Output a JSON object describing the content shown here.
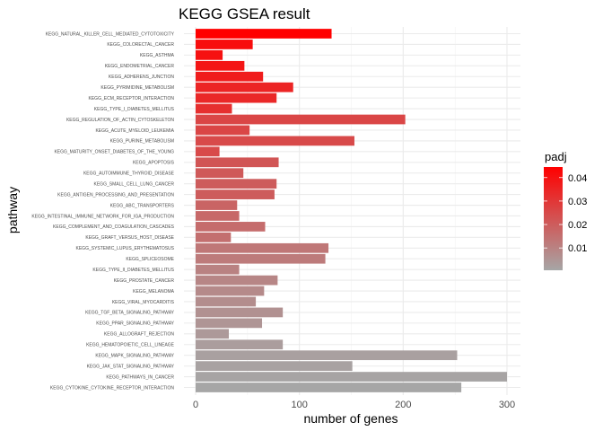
{
  "chart_data": {
    "type": "bar",
    "orientation": "horizontal",
    "title": "KEGG GSEA result",
    "xlabel": "number of genes",
    "ylabel": "pathway",
    "xlim": [
      0,
      315
    ],
    "xticks": [
      0,
      100,
      200,
      300
    ],
    "grid": true,
    "legend": {
      "title": "padj",
      "placement": "right",
      "colors": {
        "low": "#a6a6a6",
        "high": "#ff0000"
      },
      "range": [
        0.0005,
        0.0445
      ],
      "ticks": [
        0.01,
        0.02,
        0.03,
        0.04
      ],
      "tick_labels": [
        "0.01",
        "0.02",
        "0.03",
        "0.04"
      ]
    },
    "categories": [
      "KEGG_NATURAL_KILLER_CELL_MEDIATED_CYTOTOXICITY",
      "KEGG_COLORECTAL_CANCER",
      "KEGG_ASTHMA",
      "KEGG_ENDOMETRIAL_CANCER",
      "KEGG_ADHERENS_JUNCTION",
      "KEGG_PYRIMIDINE_METABOLISM",
      "KEGG_ECM_RECEPTOR_INTERACTION",
      "KEGG_TYPE_I_DIABETES_MELLITUS",
      "KEGG_REGULATION_OF_ACTIN_CYTOSKELETON",
      "KEGG_ACUTE_MYELOID_LEUKEMIA",
      "KEGG_PURINE_METABOLISM",
      "KEGG_MATURITY_ONSET_DIABETES_OF_THE_YOUNG",
      "KEGG_APOPTOSIS",
      "KEGG_AUTOIMMUNE_THYROID_DISEASE",
      "KEGG_SMALL_CELL_LUNG_CANCER",
      "KEGG_ANTIGEN_PROCESSING_AND_PRESENTATION",
      "KEGG_ABC_TRANSPORTERS",
      "KEGG_INTESTINAL_IMMUNE_NETWORK_FOR_IGA_PRODUCTION",
      "KEGG_COMPLEMENT_AND_COAGULATION_CASCADES",
      "KEGG_GRAFT_VERSUS_HOST_DISEASE",
      "KEGG_SYSTEMIC_LUPUS_ERYTHEMATOSUS",
      "KEGG_SPLICEOSOME",
      "KEGG_TYPE_II_DIABETES_MELLITUS",
      "KEGG_PROSTATE_CANCER",
      "KEGG_MELANOMA",
      "KEGG_VIRAL_MYOCARDITIS",
      "KEGG_TGF_BETA_SIGNALING_PATHWAY",
      "KEGG_PPAR_SIGNALING_PATHWAY",
      "KEGG_ALLOGRAFT_REJECTION",
      "KEGG_HEMATOPOIETIC_CELL_LINEAGE",
      "KEGG_MAPK_SIGNALING_PATHWAY",
      "KEGG_JAK_STAT_SIGNALING_PATHWAY",
      "KEGG_PATHWAYS_IN_CANCER",
      "KEGG_CYTOKINE_CYTOKINE_RECEPTOR_INTERACTION"
    ],
    "values": [
      131,
      55,
      26,
      47,
      65,
      94,
      78,
      35,
      202,
      52,
      153,
      23,
      80,
      46,
      78,
      76,
      40,
      42,
      67,
      34,
      128,
      125,
      42,
      79,
      66,
      58,
      84,
      64,
      32,
      84,
      252,
      151,
      300,
      256
    ],
    "padj": [
      0.0445,
      0.041,
      0.04,
      0.039,
      0.037,
      0.035,
      0.034,
      0.032,
      0.026,
      0.026,
      0.025,
      0.025,
      0.022,
      0.021,
      0.02,
      0.02,
      0.018,
      0.017,
      0.016,
      0.015,
      0.013,
      0.012,
      0.01,
      0.009,
      0.008,
      0.007,
      0.006,
      0.005,
      0.004,
      0.003,
      0.002,
      0.0015,
      0.001,
      0.0005
    ]
  }
}
